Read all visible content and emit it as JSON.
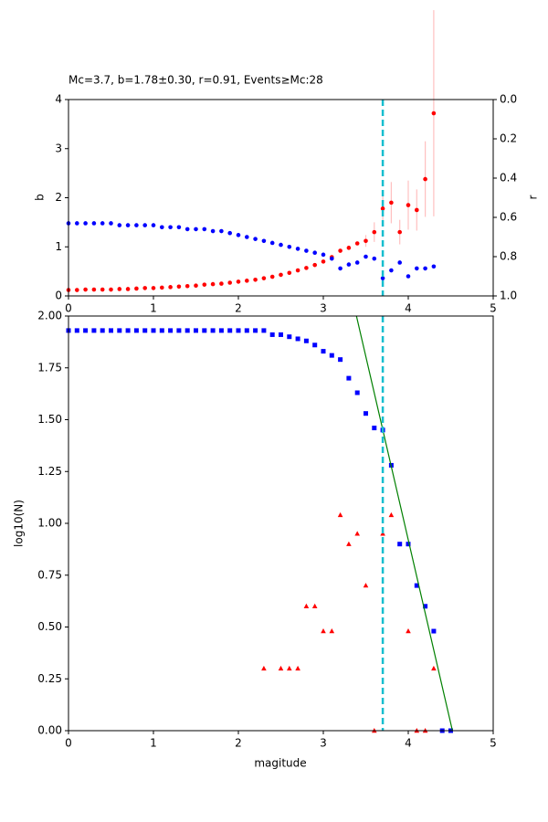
{
  "chart_data": [
    {
      "type": "scatter",
      "title": "Mc=3.7, b=1.78±0.30, r=0.91, Events≥Mc:28",
      "ylabel": "b",
      "y2label": "r",
      "x": [
        0,
        0.1,
        0.2,
        0.3,
        0.4,
        0.5,
        0.6,
        0.7,
        0.8,
        0.9,
        1.0,
        1.1,
        1.2,
        1.3,
        1.4,
        1.5,
        1.6,
        1.7,
        1.8,
        1.9,
        2.0,
        2.1,
        2.2,
        2.3,
        2.4,
        2.5,
        2.6,
        2.7,
        2.8,
        2.9,
        3.0,
        3.1,
        3.2,
        3.3,
        3.4,
        3.5,
        3.6,
        3.7,
        3.8,
        3.9,
        4.0,
        4.1,
        4.2,
        4.3
      ],
      "series": [
        {
          "color": "#ff0000",
          "marker": "circle",
          "error_color": "#ffc0c0",
          "values": [
            0.12,
            0.12,
            0.13,
            0.13,
            0.13,
            0.13,
            0.14,
            0.14,
            0.15,
            0.16,
            0.16,
            0.17,
            0.18,
            0.19,
            0.2,
            0.21,
            0.23,
            0.24,
            0.25,
            0.27,
            0.29,
            0.31,
            0.33,
            0.36,
            0.39,
            0.43,
            0.47,
            0.52,
            0.57,
            0.63,
            0.7,
            0.79,
            0.92,
            0.98,
            1.07,
            1.12,
            1.3,
            1.78,
            1.9,
            1.3,
            1.85,
            1.75,
            2.38,
            3.72
          ],
          "errors": [
            null,
            null,
            null,
            null,
            null,
            null,
            null,
            null,
            null,
            null,
            null,
            null,
            null,
            null,
            null,
            null,
            null,
            null,
            null,
            null,
            null,
            null,
            null,
            null,
            null,
            null,
            null,
            null,
            null,
            null,
            null,
            null,
            null,
            null,
            null,
            0.12,
            0.2,
            0.3,
            0.42,
            0.25,
            0.5,
            0.42,
            0.77,
            2.1
          ]
        },
        {
          "color": "#0000ff",
          "marker": "circle",
          "axis": "y2",
          "values": [
            0.63,
            0.63,
            0.63,
            0.63,
            0.63,
            0.63,
            0.64,
            0.64,
            0.64,
            0.64,
            0.64,
            0.65,
            0.65,
            0.65,
            0.66,
            0.66,
            0.66,
            0.67,
            0.67,
            0.68,
            0.69,
            0.7,
            0.71,
            0.72,
            0.73,
            0.74,
            0.75,
            0.76,
            0.77,
            0.78,
            0.79,
            0.81,
            0.86,
            0.84,
            0.83,
            0.8,
            0.81,
            0.91,
            0.87,
            0.83,
            0.9,
            0.86,
            0.86,
            0.85
          ]
        }
      ],
      "xlim": [
        0,
        5
      ],
      "xticks": [
        0,
        1,
        2,
        3,
        4,
        5
      ],
      "ylim": [
        0,
        4
      ],
      "yticks": [
        0,
        1,
        2,
        3,
        4
      ],
      "y2lim": [
        1,
        0
      ],
      "y2ticks": [
        {
          "value": 0,
          "label": "0.0"
        },
        0.2,
        0.4,
        0.6,
        0.8,
        {
          "value": 1,
          "label": "1.0"
        }
      ],
      "vline": {
        "x": 3.7,
        "color": "#17becf"
      }
    },
    {
      "type": "scatter",
      "xlabel": "magitude",
      "ylabel": "log10(N)",
      "series": [
        {
          "color": "#0000ff",
          "marker": "square",
          "x": [
            0,
            0.1,
            0.2,
            0.3,
            0.4,
            0.5,
            0.6,
            0.7,
            0.8,
            0.9,
            1.0,
            1.1,
            1.2,
            1.3,
            1.4,
            1.5,
            1.6,
            1.7,
            1.8,
            1.9,
            2.0,
            2.1,
            2.2,
            2.3,
            2.4,
            2.5,
            2.6,
            2.7,
            2.8,
            2.9,
            3.0,
            3.1,
            3.2,
            3.3,
            3.4,
            3.5,
            3.6,
            3.7,
            3.8,
            3.9,
            4.0,
            4.1,
            4.2,
            4.3,
            4.4,
            4.5
          ],
          "values": [
            1.93,
            1.93,
            1.93,
            1.93,
            1.93,
            1.93,
            1.93,
            1.93,
            1.93,
            1.93,
            1.93,
            1.93,
            1.93,
            1.93,
            1.93,
            1.93,
            1.93,
            1.93,
            1.93,
            1.93,
            1.93,
            1.93,
            1.93,
            1.93,
            1.91,
            1.91,
            1.9,
            1.89,
            1.88,
            1.86,
            1.83,
            1.81,
            1.79,
            1.7,
            1.63,
            1.53,
            1.46,
            1.45,
            1.28,
            0.9,
            0.9,
            0.7,
            0.6,
            0.48,
            0,
            0
          ]
        },
        {
          "color": "#ff0000",
          "marker": "triangle",
          "x": [
            2.3,
            2.5,
            2.6,
            2.7,
            2.8,
            2.9,
            3.0,
            3.1,
            3.2,
            3.3,
            3.4,
            3.5,
            3.6,
            3.7,
            3.8,
            4.0,
            4.1,
            4.2,
            4.3
          ],
          "values": [
            0.3,
            0.3,
            0.3,
            0.3,
            0.6,
            0.6,
            0.48,
            0.48,
            1.04,
            0.9,
            0.95,
            0.7,
            0,
            0.95,
            1.04,
            0.48,
            0,
            0,
            0.3
          ]
        },
        {
          "color": "#008000",
          "marker": "line",
          "x": [
            3.39,
            4.52
          ],
          "values": [
            2,
            0
          ]
        }
      ],
      "xlim": [
        0,
        5
      ],
      "xticks": [
        0,
        1,
        2,
        3,
        4,
        5
      ],
      "ylim": [
        0,
        2
      ],
      "yticks": [
        {
          "value": 0,
          "label": "0.00"
        },
        {
          "value": 0.25,
          "label": "0.25"
        },
        {
          "value": 0.5,
          "label": "0.50"
        },
        {
          "value": 0.75,
          "label": "0.75"
        },
        {
          "value": 1,
          "label": "1.00"
        },
        {
          "value": 1.25,
          "label": "1.25"
        },
        {
          "value": 1.5,
          "label": "1.50"
        },
        {
          "value": 1.75,
          "label": "1.75"
        },
        {
          "value": 2,
          "label": "2.00"
        }
      ],
      "vline": {
        "x": 3.7,
        "color": "#17becf"
      }
    }
  ]
}
